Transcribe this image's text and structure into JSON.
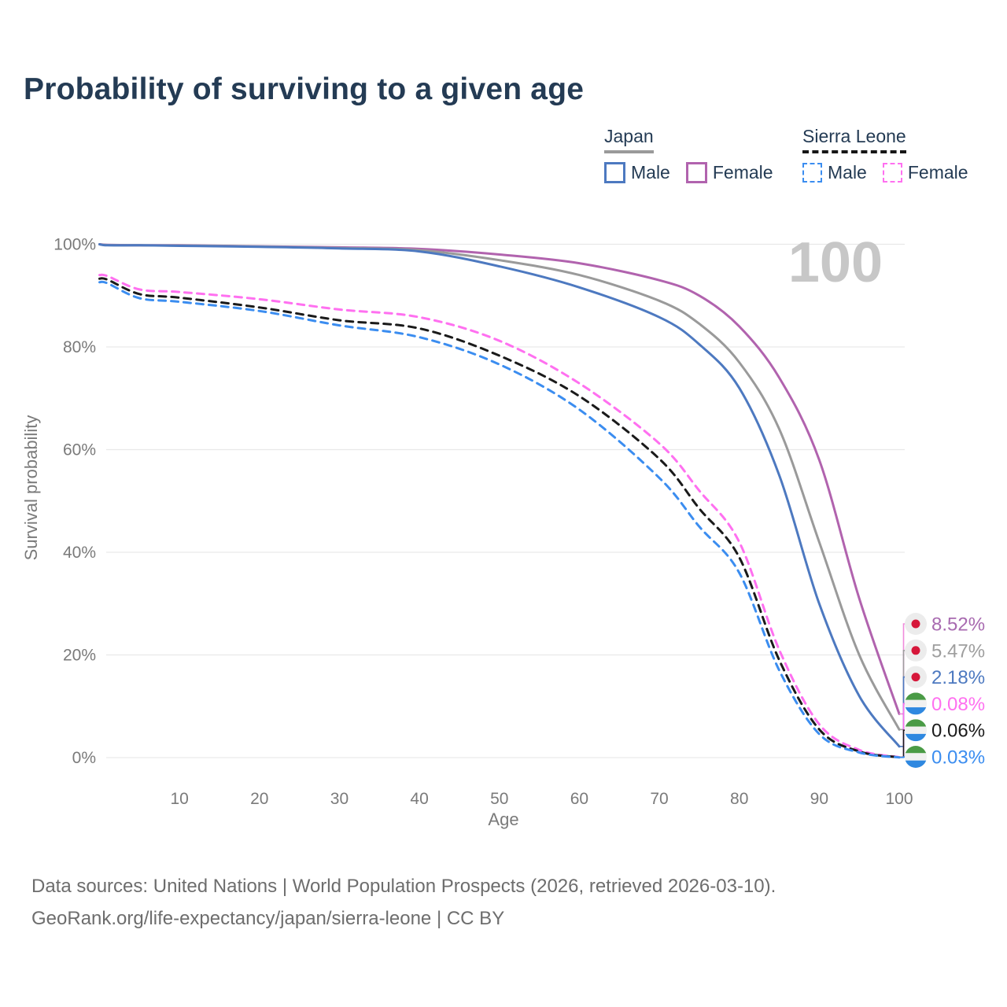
{
  "title": "Probability of surviving to a given age",
  "watermark": "100",
  "legend": {
    "groups": [
      {
        "name": "Japan",
        "line_style": "solid",
        "underline_color": "#9a9a9a",
        "items": [
          {
            "label": "Male",
            "color": "#4d79c0",
            "dashed": false
          },
          {
            "label": "Female",
            "color": "#b163ae",
            "dashed": false
          }
        ]
      },
      {
        "name": "Sierra Leone",
        "line_style": "dashed",
        "underline_color": "#161616",
        "items": [
          {
            "label": "Male",
            "color": "#3b8df0",
            "dashed": true
          },
          {
            "label": "Female",
            "color": "#ff70f0",
            "dashed": true
          }
        ]
      }
    ]
  },
  "chart_data": {
    "type": "line",
    "title": "Probability of surviving to a given age",
    "xlabel": "Age",
    "ylabel": "Survival probability",
    "xlim": [
      0,
      100
    ],
    "ylim": [
      0,
      100
    ],
    "x_ticks": [
      10,
      20,
      30,
      40,
      50,
      60,
      70,
      80,
      90,
      100
    ],
    "y_ticks": [
      {
        "value": 0,
        "label": "0%"
      },
      {
        "value": 20,
        "label": "20%"
      },
      {
        "value": 40,
        "label": "40%"
      },
      {
        "value": 60,
        "label": "60%"
      },
      {
        "value": 80,
        "label": "80%"
      },
      {
        "value": 100,
        "label": "100%"
      }
    ],
    "grid": "horizontal",
    "legend_position": "top-right",
    "ages": [
      0,
      1,
      5,
      10,
      20,
      30,
      40,
      50,
      60,
      70,
      75,
      80,
      85,
      90,
      95,
      100
    ],
    "series": [
      {
        "name": "Japan Female",
        "country": "Japan",
        "sex": "Female",
        "color": "#b163ae",
        "dash": "solid",
        "values": [
          100,
          99.9,
          99.8,
          99.8,
          99.6,
          99.4,
          99.1,
          98.0,
          96.3,
          93.0,
          90.0,
          84.0,
          74.0,
          58.0,
          31.0,
          8.52
        ],
        "end_value_label": "8.52%"
      },
      {
        "name": "Japan Both sexes",
        "country": "Japan",
        "sex": "Both",
        "color": "#9a9a9a",
        "dash": "solid",
        "values": [
          100,
          99.85,
          99.8,
          99.75,
          99.55,
          99.3,
          98.85,
          96.9,
          94.0,
          89.0,
          84.5,
          77.0,
          64.0,
          42.0,
          20.0,
          5.47
        ],
        "end_value_label": "5.47%"
      },
      {
        "name": "Japan Male",
        "country": "Japan",
        "sex": "Male",
        "color": "#4d79c0",
        "dash": "solid",
        "values": [
          100,
          99.8,
          99.8,
          99.7,
          99.5,
          99.2,
          98.6,
          95.7,
          91.6,
          85.8,
          80.5,
          72.0,
          55.0,
          30.0,
          12.0,
          2.18
        ],
        "end_value_label": "2.18%"
      },
      {
        "name": "Sierra Leone Female",
        "country": "Sierra Leone",
        "sex": "Female",
        "color": "#ff70f0",
        "dash": "dashed",
        "values": [
          94.0,
          93.8,
          91.2,
          90.7,
          89.3,
          87.3,
          85.8,
          81.2,
          72.9,
          61.2,
          52.0,
          42.0,
          21.0,
          6.5,
          1.5,
          0.08
        ],
        "end_value_label": "0.08%"
      },
      {
        "name": "Sierra Leone Both sexes",
        "country": "Sierra Leone",
        "sex": "Both",
        "color": "#1a1a1a",
        "dash": "dashed",
        "values": [
          93.3,
          93.1,
          90.3,
          89.6,
          87.7,
          85.2,
          83.6,
          78.3,
          70.4,
          58.2,
          48.5,
          39.0,
          19.0,
          5.5,
          1.2,
          0.06
        ],
        "end_value_label": "0.06%"
      },
      {
        "name": "Sierra Leone Male",
        "country": "Sierra Leone",
        "sex": "Male",
        "color": "#3b8df0",
        "dash": "dashed",
        "values": [
          92.6,
          92.4,
          89.5,
          88.8,
          87.0,
          84.2,
          81.9,
          76.6,
          67.8,
          54.5,
          45.0,
          36.0,
          17.0,
          4.6,
          1.0,
          0.03
        ],
        "end_value_label": "0.03%"
      }
    ],
    "end_labels": [
      {
        "text": "8.52%",
        "series": "Japan Female",
        "flag": "japan",
        "color": "#a86ab0",
        "connector_color": "#f08bdc"
      },
      {
        "text": "5.47%",
        "series": "Japan Both sexes",
        "flag": "japan",
        "color": "#9e9e9e",
        "connector_color": "#9e9e9e"
      },
      {
        "text": "2.18%",
        "series": "Japan Male",
        "flag": "japan",
        "color": "#4d79c0",
        "connector_color": "#4d79c0"
      },
      {
        "text": "0.08%",
        "series": "Sierra Leone Female",
        "flag": "sierra-leone",
        "color": "#ff70f0",
        "connector_color": "#ff70f0"
      },
      {
        "text": "0.06%",
        "series": "Sierra Leone Both sexes",
        "flag": "sierra-leone",
        "color": "#1a1a1a",
        "connector_color": "#1a1a1a"
      },
      {
        "text": "0.03%",
        "series": "Sierra Leone Male",
        "flag": "sierra-leone",
        "color": "#3b8df0",
        "connector_color": "#3b8df0"
      }
    ],
    "annotations": {
      "age_counter": "100"
    }
  },
  "flags": {
    "japan": {
      "background": "#ececec",
      "dot": "#d6173a"
    },
    "sierra_leone": {
      "green": "#4a9b46",
      "white": "#f1f1f1",
      "blue": "#2f88e0"
    }
  },
  "colors": {
    "title": "#243b54",
    "axis_text": "#7a7a7a",
    "gridline": "#e9e9e9",
    "watermark": "#c7c7c7",
    "footer_text": "#6d6d6d"
  },
  "footer": {
    "line1": "Data sources: United Nations | World Population Prospects (2026, retrieved 2026-03-10).",
    "line2": "GeoRank.org/life-expectancy/japan/sierra-leone | CC BY"
  }
}
